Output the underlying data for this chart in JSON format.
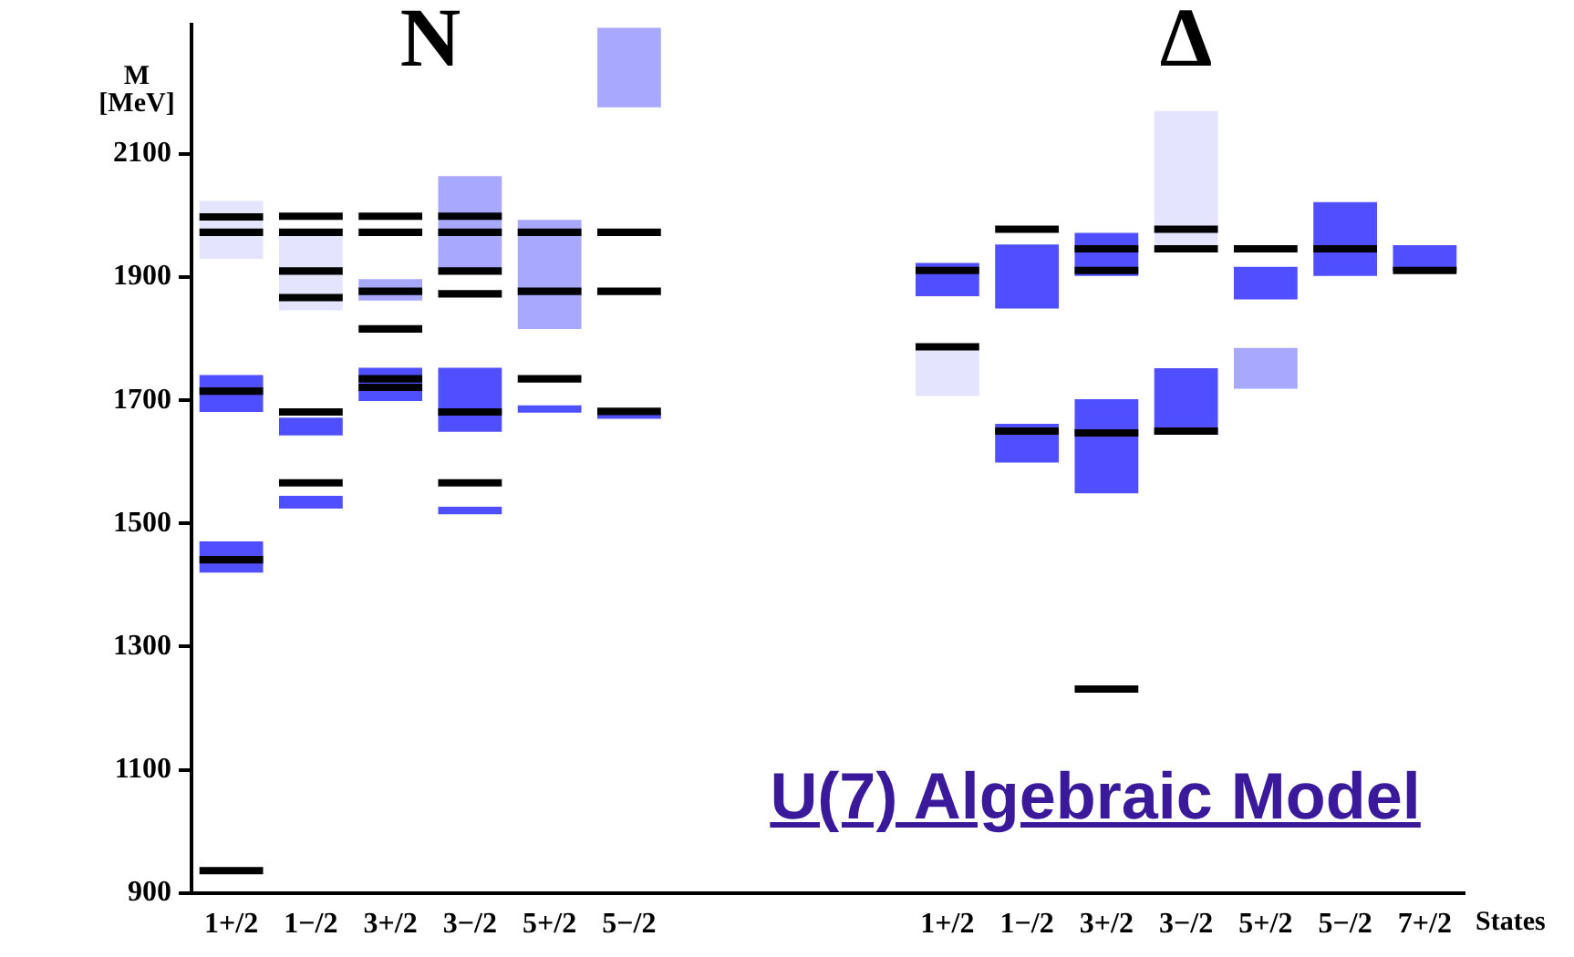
{
  "chart_data": {
    "type": "bar",
    "ylabel": "M [MeV]",
    "xlabel": "States",
    "annotations": [
      "N",
      "Δ",
      "U(7) Algebraic Model"
    ],
    "categories": [
      "1+/2",
      "1−/2",
      "3+/2",
      "3−/2",
      "5+/2",
      "5−/2",
      null,
      null,
      null,
      "1+/2",
      "1−/2",
      "3+/2",
      "3−/2",
      "5+/2",
      "5−/2",
      "7+/2"
    ],
    "ylim": [
      900,
      2310
    ],
    "yticks": [
      900,
      1100,
      1300,
      1500,
      1700,
      1900,
      2100
    ],
    "grid": false,
    "legend": false,
    "series": [
      {
        "base": [
          1420,
          1524,
          1699,
          1515,
          1680,
          1670,
          null,
          null,
          null,
          1707,
          1599,
          1549,
          1644,
          1719,
          1902,
          1910
        ],
        "values": [
          51,
          21,
          54,
          12,
          12,
          10,
          null,
          null,
          null,
          80,
          63,
          153,
          108,
          66,
          120,
          42
        ],
        "colors": [
          "#4f4fff",
          "#4f4fff",
          "#4f4fff",
          "#4f4fff",
          "#4f4fff",
          "#4f4fff",
          "#4f4fff",
          "#4f4fff",
          "#4f4fff",
          "#e4e4ff",
          "#4f4fff",
          "#4f4fff",
          "#4f4fff",
          "#a8a8ff",
          "#4f4fff",
          "#4f4fff"
        ]
      },
      {
        "base": [
          1681,
          1643,
          1862,
          1649,
          1816,
          2176,
          null,
          null,
          null,
          1869,
          1849,
          1902,
          1945,
          1864,
          null,
          null
        ],
        "values": [
          60,
          29,
          35,
          104,
          177,
          129,
          null,
          null,
          null,
          54,
          104,
          70,
          225,
          53,
          null,
          null
        ],
        "colors": [
          "#4f4fff",
          "#4f4fff",
          "#a8a8ff",
          "#4f4fff",
          "#a8a8ff",
          "#a8a8ff",
          "#4f4fff",
          "#4f4fff",
          "#4f4fff",
          "#4f4fff",
          "#4f4fff",
          "#4f4fff",
          "#e4e4ff",
          "#4f4fff",
          "#4f4fff",
          "#4f4fff"
        ]
      },
      {
        "base": [
          1930,
          1846,
          null,
          1915,
          null,
          null,
          null,
          null,
          null,
          null,
          null,
          null,
          null,
          null,
          null,
          null
        ],
        "values": [
          94,
          127,
          null,
          149,
          null,
          null,
          null,
          null,
          null,
          null,
          null,
          null,
          null,
          null,
          null,
          null
        ],
        "colors": [
          "#e4e4ff",
          "#e4e4ff",
          "#e4e4ff",
          "#a8a8ff",
          "#e4e4ff",
          "#e4e4ff",
          "#e4e4ff",
          "#e4e4ff",
          "#e4e4ff",
          "#e4e4ff",
          "#e4e4ff",
          "#e4e4ff",
          "#e4e4ff",
          "#e4e4ff",
          "#e4e4ff",
          "#e4e4ff"
        ]
      },
      {
        "color": "#000000",
        "base": [
          930,
          1560,
          1715,
          1560,
          1729,
          1676,
          null,
          null,
          null,
          1781,
          1644,
          1225,
          1644,
          1940,
          1940,
          1905
        ],
        "values": [
          12,
          12,
          12,
          12,
          12,
          12,
          null,
          null,
          null,
          12,
          12,
          12,
          12,
          12,
          12,
          12
        ]
      },
      {
        "color": "#000000",
        "base": [
          1435,
          1675,
          1729,
          1675,
          1871,
          1871,
          null,
          null,
          null,
          1905,
          1972,
          1641,
          1940,
          null,
          null,
          null
        ],
        "values": [
          12,
          12,
          12,
          12,
          12,
          12,
          null,
          null,
          null,
          12,
          12,
          12,
          12,
          null,
          null,
          null
        ]
      },
      {
        "color": "#000000",
        "base": [
          1709,
          1861,
          1810,
          1867,
          1967,
          1967,
          null,
          null,
          null,
          null,
          null,
          1905,
          1972,
          null,
          null,
          null
        ],
        "values": [
          12,
          12,
          12,
          12,
          12,
          12,
          null,
          null,
          null,
          null,
          null,
          12,
          12,
          null,
          null,
          null
        ]
      },
      {
        "color": "#000000",
        "base": [
          1967,
          1904,
          1871,
          1904,
          null,
          null,
          null,
          null,
          null,
          null,
          null,
          1940,
          null,
          null,
          null,
          null
        ],
        "values": [
          12,
          12,
          12,
          12,
          null,
          null,
          null,
          null,
          null,
          null,
          null,
          12,
          null,
          null,
          null,
          null
        ]
      },
      {
        "color": "#000000",
        "base": [
          1992,
          1967,
          1967,
          1967,
          null,
          null,
          null,
          null,
          null,
          null,
          null,
          null,
          null,
          null,
          null,
          null
        ],
        "values": [
          12,
          12,
          12,
          12,
          null,
          null,
          null,
          null,
          null,
          null,
          null,
          null,
          null,
          null,
          null,
          null
        ]
      },
      {
        "color": "#000000",
        "base": [
          null,
          1993,
          1993,
          1993,
          null,
          null,
          null,
          null,
          null,
          null,
          null,
          null,
          null,
          null,
          null,
          null
        ],
        "values": [
          null,
          12,
          12,
          12,
          null,
          null,
          null,
          null,
          null,
          null,
          null,
          null,
          null,
          null,
          null,
          null
        ]
      }
    ]
  }
}
